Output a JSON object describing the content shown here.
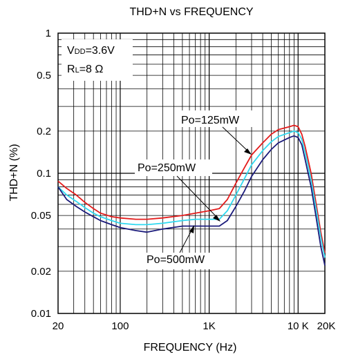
{
  "chart_data": {
    "type": "line",
    "title": "THD+N vs FREQUENCY",
    "xlabel": "FREQUENCY (Hz)",
    "ylabel": "THD+N (%)",
    "x_scale": "log",
    "y_scale": "log",
    "xlim": [
      20,
      20000
    ],
    "ylim": [
      0.01,
      1
    ],
    "grid": true,
    "x_ticks": [
      {
        "value": 20,
        "label": "20"
      },
      {
        "value": 100,
        "label": "100"
      },
      {
        "value": 1000,
        "label": "1K"
      },
      {
        "value": 10000,
        "label": "10 K"
      },
      {
        "value": 20000,
        "label": "20K"
      }
    ],
    "y_ticks": [
      {
        "value": 0.01,
        "label": "0.01"
      },
      {
        "value": 0.02,
        "label": "0.02"
      },
      {
        "value": 0.05,
        "label": "0.05"
      },
      {
        "value": 0.1,
        "label": "0.1"
      },
      {
        "value": 0.2,
        "label": "0.2"
      },
      {
        "value": 0.5,
        "label": "0.5"
      },
      {
        "value": 1,
        "label": "1"
      }
    ],
    "conditions": {
      "vdd_symbol": "V",
      "vdd_sub": "DD",
      "vdd_value": "=3.6V",
      "rl_symbol": "R",
      "rl_sub": "L",
      "rl_value": "=8 Ω"
    },
    "series": [
      {
        "name": "Po=125mW",
        "color": "#e31b1b",
        "x": [
          20,
          25,
          32,
          40,
          50,
          60,
          80,
          100,
          150,
          200,
          300,
          500,
          700,
          1000,
          1300,
          1600,
          2000,
          2500,
          3000,
          4000,
          5000,
          6000,
          8000,
          9000,
          10000,
          11000,
          12000,
          14000,
          16000,
          18000,
          20000
        ],
        "y": [
          0.088,
          0.078,
          0.07,
          0.062,
          0.056,
          0.052,
          0.049,
          0.048,
          0.047,
          0.047,
          0.048,
          0.05,
          0.052,
          0.054,
          0.056,
          0.065,
          0.085,
          0.11,
          0.135,
          0.165,
          0.19,
          0.205,
          0.215,
          0.22,
          0.215,
          0.19,
          0.155,
          0.1,
          0.06,
          0.038,
          0.027
        ]
      },
      {
        "name": "Po=250mW",
        "color": "#2fd9f0",
        "x": [
          20,
          25,
          32,
          40,
          50,
          60,
          80,
          100,
          150,
          200,
          300,
          500,
          700,
          1000,
          1300,
          1600,
          2000,
          2500,
          3000,
          4000,
          5000,
          6000,
          8000,
          9000,
          10000,
          11000,
          12000,
          14000,
          16000,
          18000,
          20000
        ],
        "y": [
          0.08,
          0.07,
          0.063,
          0.057,
          0.052,
          0.049,
          0.046,
          0.044,
          0.043,
          0.043,
          0.044,
          0.046,
          0.047,
          0.047,
          0.047,
          0.054,
          0.07,
          0.092,
          0.115,
          0.145,
          0.168,
          0.183,
          0.195,
          0.2,
          0.195,
          0.175,
          0.14,
          0.09,
          0.055,
          0.035,
          0.025
        ]
      },
      {
        "name": "Po=500mW",
        "color": "#1a1a7a",
        "x": [
          20,
          25,
          32,
          40,
          50,
          60,
          80,
          100,
          150,
          200,
          300,
          500,
          700,
          1000,
          1300,
          1600,
          2000,
          2500,
          3000,
          4000,
          5000,
          6000,
          8000,
          9000,
          10000,
          11000,
          12000,
          14000,
          16000,
          18000,
          20000
        ],
        "y": [
          0.08,
          0.065,
          0.058,
          0.053,
          0.049,
          0.046,
          0.043,
          0.041,
          0.039,
          0.038,
          0.04,
          0.042,
          0.042,
          0.042,
          0.042,
          0.046,
          0.058,
          0.075,
          0.095,
          0.125,
          0.148,
          0.165,
          0.18,
          0.185,
          0.18,
          0.16,
          0.125,
          0.08,
          0.048,
          0.03,
          0.022
        ]
      }
    ]
  }
}
